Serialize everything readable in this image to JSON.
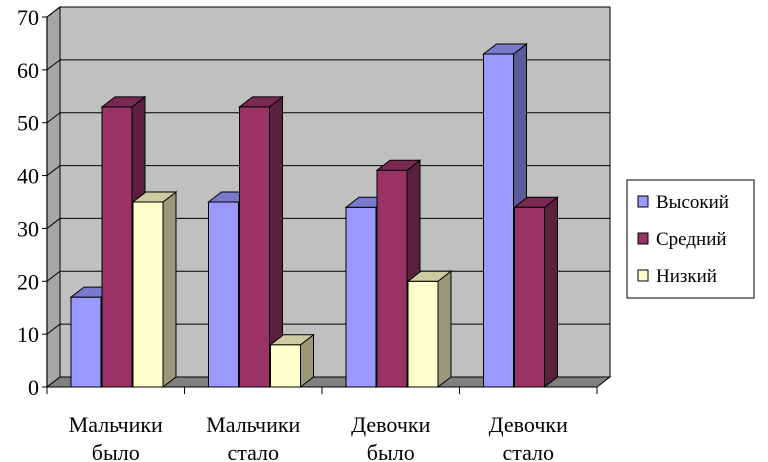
{
  "chart_data": {
    "type": "bar",
    "categories": [
      [
        "Мальчики",
        "было"
      ],
      [
        "Мальчики",
        "стало"
      ],
      [
        "Девочки",
        "было"
      ],
      [
        "Девочки",
        "стало"
      ]
    ],
    "series": [
      {
        "name": "Высокий",
        "values": [
          17,
          35,
          34,
          63
        ],
        "color": "#9999ff"
      },
      {
        "name": "Средний",
        "values": [
          53,
          53,
          41,
          34
        ],
        "color": "#993366"
      },
      {
        "name": "Низкий",
        "values": [
          35,
          8,
          20,
          0
        ],
        "color": "#ffffcc"
      }
    ],
    "yticks": [
      0,
      10,
      20,
      30,
      40,
      50,
      60,
      70
    ],
    "ylim": [
      0,
      70
    ],
    "grid": true,
    "legend": "right",
    "wall_color": "#c0c0c0",
    "floor_color": "#808080"
  }
}
